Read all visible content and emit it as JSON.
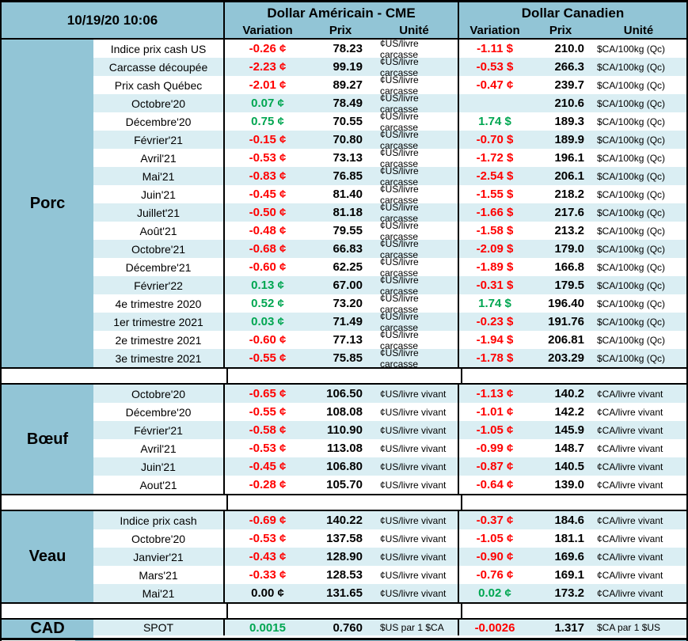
{
  "meta": {
    "timestamp": "10/19/20 10:06"
  },
  "header": {
    "us_title": "Dollar Américain - CME",
    "ca_title": "Dollar Canadien",
    "columns": [
      "Variation",
      "Prix",
      "Unité"
    ]
  },
  "colors": {
    "header_teal": "#92c5d6",
    "row_alt": "#daeef3",
    "negative": "#ff0000",
    "positive": "#00a651",
    "border": "#000000"
  },
  "chart_data": [
    {
      "type": "table",
      "title": "Porc",
      "first_shade": "white",
      "rows": [
        {
          "label": "Indice prix cash US",
          "us_var": "-0.26 ¢",
          "us_prix": "78.23",
          "us_unit": "¢US/livre carcasse",
          "ca_var": "-1.11 $",
          "ca_prix": "210.0",
          "ca_unit": "$CA/100kg (Qc)"
        },
        {
          "label": "Carcasse découpée",
          "us_var": "-2.23 ¢",
          "us_prix": "99.19",
          "us_unit": "¢US/livre carcasse",
          "ca_var": "-0.53 $",
          "ca_prix": "266.3",
          "ca_unit": "$CA/100kg (Qc)"
        },
        {
          "label": "Prix cash Québec",
          "us_var": "-2.01 ¢",
          "us_prix": "89.27",
          "us_unit": "¢US/livre carcasse",
          "ca_var": "-0.47 ¢",
          "ca_prix": "239.7",
          "ca_unit": "$CA/100kg (Qc)"
        },
        {
          "label": "Octobre'20",
          "us_var": "0.07 ¢",
          "us_prix": "78.49",
          "us_unit": "¢US/livre carcasse",
          "ca_var": "",
          "ca_prix": "210.6",
          "ca_unit": "$CA/100kg (Qc)"
        },
        {
          "label": "Décembre'20",
          "us_var": "0.75 ¢",
          "us_prix": "70.55",
          "us_unit": "¢US/livre carcasse",
          "ca_var": "1.74 $",
          "ca_prix": "189.3",
          "ca_unit": "$CA/100kg (Qc)"
        },
        {
          "label": "Février'21",
          "us_var": "-0.15 ¢",
          "us_prix": "70.80",
          "us_unit": "¢US/livre carcasse",
          "ca_var": "-0.70 $",
          "ca_prix": "189.9",
          "ca_unit": "$CA/100kg (Qc)"
        },
        {
          "label": "Avril'21",
          "us_var": "-0.53 ¢",
          "us_prix": "73.13",
          "us_unit": "¢US/livre carcasse",
          "ca_var": "-1.72 $",
          "ca_prix": "196.1",
          "ca_unit": "$CA/100kg (Qc)"
        },
        {
          "label": "Mai'21",
          "us_var": "-0.83 ¢",
          "us_prix": "76.85",
          "us_unit": "¢US/livre carcasse",
          "ca_var": "-2.54 $",
          "ca_prix": "206.1",
          "ca_unit": "$CA/100kg (Qc)"
        },
        {
          "label": "Juin'21",
          "us_var": "-0.45 ¢",
          "us_prix": "81.40",
          "us_unit": "¢US/livre carcasse",
          "ca_var": "-1.55 $",
          "ca_prix": "218.2",
          "ca_unit": "$CA/100kg (Qc)"
        },
        {
          "label": "Juillet'21",
          "us_var": "-0.50 ¢",
          "us_prix": "81.18",
          "us_unit": "¢US/livre carcasse",
          "ca_var": "-1.66 $",
          "ca_prix": "217.6",
          "ca_unit": "$CA/100kg (Qc)"
        },
        {
          "label": "Août'21",
          "us_var": "-0.48 ¢",
          "us_prix": "79.55",
          "us_unit": "¢US/livre carcasse",
          "ca_var": "-1.58 $",
          "ca_prix": "213.2",
          "ca_unit": "$CA/100kg (Qc)"
        },
        {
          "label": "Octobre'21",
          "us_var": "-0.68 ¢",
          "us_prix": "66.83",
          "us_unit": "¢US/livre carcasse",
          "ca_var": "-2.09 $",
          "ca_prix": "179.0",
          "ca_unit": "$CA/100kg (Qc)"
        },
        {
          "label": "Décembre'21",
          "us_var": "-0.60 ¢",
          "us_prix": "62.25",
          "us_unit": "¢US/livre carcasse",
          "ca_var": "-1.89 $",
          "ca_prix": "166.8",
          "ca_unit": "$CA/100kg (Qc)"
        },
        {
          "label": "Février'22",
          "us_var": "0.13 ¢",
          "us_prix": "67.00",
          "us_unit": "¢US/livre carcasse",
          "ca_var": "-0.31 $",
          "ca_prix": "179.5",
          "ca_unit": "$CA/100kg (Qc)"
        },
        {
          "label": "4e trimestre 2020",
          "us_var": "0.52 ¢",
          "us_prix": "73.20",
          "us_unit": "¢US/livre carcasse",
          "ca_var": "1.74 $",
          "ca_prix": "196.40",
          "ca_unit": "$CA/100kg (Qc)"
        },
        {
          "label": "1er trimestre 2021",
          "us_var": "0.03 ¢",
          "us_prix": "71.49",
          "us_unit": "¢US/livre carcasse",
          "ca_var": "-0.23 $",
          "ca_prix": "191.76",
          "ca_unit": "$CA/100kg (Qc)"
        },
        {
          "label": "2e trimestre 2021",
          "us_var": "-0.60 ¢",
          "us_prix": "77.13",
          "us_unit": "¢US/livre carcasse",
          "ca_var": "-1.94 $",
          "ca_prix": "206.81",
          "ca_unit": "$CA/100kg (Qc)"
        },
        {
          "label": "3e trimestre 2021",
          "us_var": "-0.55 ¢",
          "us_prix": "75.85",
          "us_unit": "¢US/livre carcasse",
          "ca_var": "-1.78 $",
          "ca_prix": "203.29",
          "ca_unit": "$CA/100kg (Qc)"
        }
      ]
    },
    {
      "type": "table",
      "title": "Bœuf",
      "first_shade": "alt",
      "rows": [
        {
          "label": "Octobre'20",
          "us_var": "-0.65 ¢",
          "us_prix": "106.50",
          "us_unit": "¢US/livre vivant",
          "ca_var": "-1.13 ¢",
          "ca_prix": "140.2",
          "ca_unit": "¢CA/livre vivant"
        },
        {
          "label": "Décembre'20",
          "us_var": "-0.55 ¢",
          "us_prix": "108.08",
          "us_unit": "¢US/livre vivant",
          "ca_var": "-1.01 ¢",
          "ca_prix": "142.2",
          "ca_unit": "¢CA/livre vivant"
        },
        {
          "label": "Février'21",
          "us_var": "-0.58 ¢",
          "us_prix": "110.90",
          "us_unit": "¢US/livre vivant",
          "ca_var": "-1.05 ¢",
          "ca_prix": "145.9",
          "ca_unit": "¢CA/livre vivant"
        },
        {
          "label": "Avril'21",
          "us_var": "-0.53 ¢",
          "us_prix": "113.08",
          "us_unit": "¢US/livre vivant",
          "ca_var": "-0.99 ¢",
          "ca_prix": "148.7",
          "ca_unit": "¢CA/livre vivant"
        },
        {
          "label": "Juin'21",
          "us_var": "-0.45 ¢",
          "us_prix": "106.80",
          "us_unit": "¢US/livre vivant",
          "ca_var": "-0.87 ¢",
          "ca_prix": "140.5",
          "ca_unit": "¢CA/livre vivant"
        },
        {
          "label": "Aout'21",
          "us_var": "-0.28 ¢",
          "us_prix": "105.70",
          "us_unit": "¢US/livre vivant",
          "ca_var": "-0.64 ¢",
          "ca_prix": "139.0",
          "ca_unit": "¢CA/livre vivant"
        }
      ]
    },
    {
      "type": "table",
      "title": "Veau",
      "first_shade": "alt",
      "rows": [
        {
          "label": "Indice prix cash",
          "us_var": "-0.69 ¢",
          "us_prix": "140.22",
          "us_unit": "¢US/livre vivant",
          "ca_var": "-0.37 ¢",
          "ca_prix": "184.6",
          "ca_unit": "¢CA/livre vivant"
        },
        {
          "label": "Octobre'20",
          "us_var": "-0.53 ¢",
          "us_prix": "137.58",
          "us_unit": "¢US/livre vivant",
          "ca_var": "-1.05 ¢",
          "ca_prix": "181.1",
          "ca_unit": "¢CA/livre vivant"
        },
        {
          "label": "Janvier'21",
          "us_var": "-0.43 ¢",
          "us_prix": "128.90",
          "us_unit": "¢US/livre vivant",
          "ca_var": "-0.90 ¢",
          "ca_prix": "169.6",
          "ca_unit": "¢CA/livre vivant"
        },
        {
          "label": "Mars'21",
          "us_var": "-0.33 ¢",
          "us_prix": "128.53",
          "us_unit": "¢US/livre vivant",
          "ca_var": "-0.76 ¢",
          "ca_prix": "169.1",
          "ca_unit": "¢CA/livre vivant"
        },
        {
          "label": "Mai'21",
          "us_var": "0.00 ¢",
          "us_prix": "131.65",
          "us_unit": "¢US/livre vivant",
          "ca_var": "0.02 ¢",
          "ca_prix": "173.2",
          "ca_unit": "¢CA/livre vivant"
        }
      ]
    },
    {
      "type": "table",
      "title": "CAD",
      "first_shade": "alt",
      "rows": [
        {
          "label": "SPOT",
          "us_var": "0.0015",
          "us_prix": "0.760",
          "us_unit": "$US par 1 $CA",
          "ca_var": "-0.0026",
          "ca_prix": "1.317",
          "ca_unit": "$CA par 1 $US"
        }
      ]
    }
  ]
}
